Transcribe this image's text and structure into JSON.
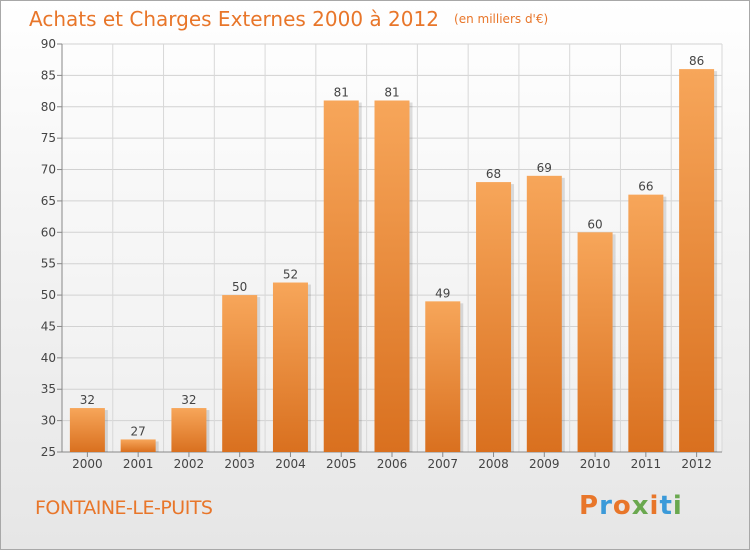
{
  "header": {
    "title": "Achats et Charges Externes 2000 à 2012",
    "subtitle": "(en milliers d'€)"
  },
  "footer": {
    "city": "FONTAINE-LE-PUITS",
    "logo_text": "Proxiti",
    "logo_colors": [
      "#e8762a",
      "#3b9ad9",
      "#e8762a",
      "#6aa84f",
      "#e8762a",
      "#3b9ad9",
      "#6aa84f"
    ]
  },
  "chart_data": {
    "type": "bar",
    "categories": [
      "2000",
      "2001",
      "2002",
      "2003",
      "2004",
      "2005",
      "2006",
      "2007",
      "2008",
      "2009",
      "2010",
      "2011",
      "2012"
    ],
    "values": [
      32,
      27,
      32,
      50,
      52,
      81,
      81,
      49,
      68,
      69,
      60,
      66,
      86
    ],
    "data_labels": [
      "32",
      "27",
      "32",
      "50",
      "52",
      "81",
      "81",
      "49",
      "68",
      "69",
      "60",
      "66",
      "86"
    ],
    "ylim": [
      25,
      90
    ],
    "yticks": [
      25,
      30,
      35,
      40,
      45,
      50,
      55,
      60,
      65,
      70,
      75,
      80,
      85,
      90
    ],
    "ytick_labels": [
      "25",
      "30",
      "35",
      "40",
      "45",
      "50",
      "55",
      "60",
      "65",
      "70",
      "75",
      "80",
      "85",
      "90"
    ],
    "grid": true,
    "bar_color_top": "#f7a65a",
    "bar_color_bottom": "#d9701f"
  }
}
